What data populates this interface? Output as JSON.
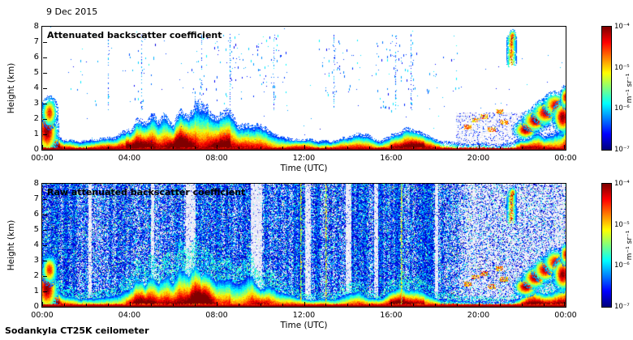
{
  "header": {
    "date": "9 Dec 2015"
  },
  "footer": {
    "credit": "Sodankyla CT25K ceilometer"
  },
  "panels": [
    {
      "title": "Attenuated backscatter coefficient"
    },
    {
      "title": "Raw attenuated backscatter coefficient"
    }
  ],
  "axes": {
    "x": {
      "label": "Time (UTC)",
      "tick_labels": [
        "00:00",
        "04:00",
        "08:00",
        "12:00",
        "16:00",
        "20:00",
        "00:00"
      ],
      "range_hours": [
        0,
        24
      ],
      "minor_tick_every_hours": 1
    },
    "y": {
      "label": "Height (km)",
      "tick_labels": [
        "0",
        "1",
        "2",
        "3",
        "4",
        "5",
        "6",
        "7",
        "8"
      ],
      "range_km": [
        0,
        8
      ]
    }
  },
  "colorbar": {
    "unit": "m⁻¹ sr⁻¹",
    "tick_labels": [
      "10⁻⁴",
      "10⁻⁵",
      "10⁻⁶",
      "10⁻⁷"
    ],
    "colormap": "jet"
  },
  "chart_data": [
    {
      "type": "heatmap",
      "panel": "attenuated",
      "title": "Attenuated backscatter coefficient",
      "xlabel": "Time (UTC)",
      "ylabel": "Height (km)",
      "x_range_hours": [
        0,
        24
      ],
      "y_range_km": [
        0,
        8
      ],
      "x_ticks": [
        "00:00",
        "04:00",
        "08:00",
        "12:00",
        "16:00",
        "20:00",
        "00:00"
      ],
      "y_ticks": [
        0,
        1,
        2,
        3,
        4,
        5,
        6,
        7,
        8
      ],
      "z_unit": "m⁻¹ sr⁻¹",
      "z_scale": "log10",
      "z_range": [
        1e-07,
        0.0001
      ],
      "z_tick_exponents": [
        -4,
        -5,
        -6,
        -7
      ],
      "colormap": "jet",
      "boundary_layer_top_km": [
        [
          0,
          1.2
        ],
        [
          0.5,
          1.0
        ],
        [
          1,
          0.55
        ],
        [
          1.5,
          0.5
        ],
        [
          2,
          0.55
        ],
        [
          2.5,
          0.5
        ],
        [
          3,
          0.6
        ],
        [
          3.5,
          0.7
        ],
        [
          4,
          1.1
        ],
        [
          4.3,
          1.6
        ],
        [
          4.7,
          1.2
        ],
        [
          5,
          1.8
        ],
        [
          5.3,
          1.4
        ],
        [
          5.7,
          2.0
        ],
        [
          6,
          1.6
        ],
        [
          6.3,
          2.1
        ],
        [
          6.7,
          1.8
        ],
        [
          7,
          2.5
        ],
        [
          7.3,
          2.0
        ],
        [
          7.6,
          2.3
        ],
        [
          8,
          1.6
        ],
        [
          8.5,
          1.9
        ],
        [
          9,
          1.4
        ],
        [
          9.5,
          1.6
        ],
        [
          10,
          1.2
        ],
        [
          10.5,
          1.0
        ],
        [
          11,
          0.8
        ],
        [
          11.5,
          0.6
        ],
        [
          12,
          0.5
        ],
        [
          12.5,
          0.45
        ],
        [
          13,
          0.55
        ],
        [
          13.5,
          0.45
        ],
        [
          14,
          0.7
        ],
        [
          14.5,
          0.9
        ],
        [
          15,
          0.6
        ],
        [
          15.5,
          0.5
        ],
        [
          16,
          0.8
        ],
        [
          16.5,
          1.1
        ],
        [
          17,
          1.0
        ],
        [
          17.5,
          0.8
        ],
        [
          18,
          0.5
        ],
        [
          18.5,
          0.4
        ],
        [
          19,
          0.35
        ],
        [
          20,
          0.3
        ],
        [
          21,
          0.3
        ],
        [
          21.5,
          0.35
        ],
        [
          22,
          0.6
        ],
        [
          22.5,
          0.9
        ],
        [
          23,
          0.7
        ],
        [
          23.5,
          1.0
        ],
        [
          24,
          1.3
        ]
      ],
      "features": {
        "strong_intervals": [
          [
            0,
            0.8
          ],
          [
            3.8,
            8.6
          ],
          [
            15.9,
            17.5
          ],
          [
            21.9,
            24
          ]
        ],
        "weak_intervals": [
          [
            18.2,
            21.7
          ]
        ],
        "blobs": [
          [
            0.2,
            1.2,
            0.28,
            0.9,
            1.0
          ],
          [
            0.32,
            2.4,
            0.2,
            0.55,
            0.85
          ],
          [
            22.15,
            1.3,
            0.3,
            0.35,
            1.0
          ],
          [
            22.6,
            1.9,
            0.33,
            0.4,
            1.0
          ],
          [
            23.05,
            2.4,
            0.33,
            0.45,
            0.95
          ],
          [
            23.5,
            2.9,
            0.3,
            0.45,
            0.9
          ],
          [
            23.85,
            2.1,
            0.25,
            0.6,
            1.0
          ],
          [
            23.95,
            3.4,
            0.12,
            0.4,
            0.85
          ],
          [
            21.55,
            7.25,
            0.1,
            0.3,
            1.0
          ]
        ],
        "high_cloud": {
          "center_hour": 21.5,
          "half_width_hours": 0.25,
          "y0_km": 5.3,
          "y1_km": 7.6
        },
        "elevated_streaks": [
          [
            19.5,
            1.5
          ],
          [
            19.85,
            1.95
          ],
          [
            20.25,
            2.2
          ],
          [
            20.6,
            1.35
          ],
          [
            20.95,
            2.5
          ],
          [
            21.15,
            1.8
          ]
        ],
        "attenuated_haze": {
          "t0": 19.0,
          "t1": 24.0,
          "top_km": 2.4,
          "fill_ratio": 0.3
        },
        "speckle_clusters": [
          [
            1.2,
            2.6,
            2.5,
            6.0,
            0.004
          ],
          [
            3.8,
            5.2,
            3.0,
            7.0,
            0.007
          ],
          [
            6.8,
            7.7,
            2.5,
            7.5,
            0.009
          ],
          [
            7.9,
            9.2,
            3.0,
            7.5,
            0.012
          ],
          [
            9.4,
            11.2,
            3.5,
            7.5,
            0.014
          ],
          [
            12.6,
            14.6,
            3.5,
            7.5,
            0.01
          ],
          [
            15.3,
            17.2,
            2.5,
            7.5,
            0.013
          ],
          [
            17.6,
            19.2,
            3.5,
            7.0,
            0.006
          ]
        ],
        "speckle_columns_hours": [
          3.0,
          4.55,
          7.3,
          8.6,
          10.6,
          13.35,
          16.2,
          16.9
        ],
        "base_speckle_density": 0.0012
      }
    },
    {
      "type": "heatmap",
      "panel": "raw",
      "title": "Raw attenuated backscatter coefficient",
      "xlabel": "Time (UTC)",
      "ylabel": "Height (km)",
      "x_range_hours": [
        0,
        24
      ],
      "y_range_km": [
        0,
        8
      ],
      "x_ticks": [
        "00:00",
        "04:00",
        "08:00",
        "12:00",
        "16:00",
        "20:00",
        "00:00"
      ],
      "y_ticks": [
        0,
        1,
        2,
        3,
        4,
        5,
        6,
        7,
        8
      ],
      "z_unit": "m⁻¹ sr⁻¹",
      "z_scale": "log10",
      "z_range": [
        1e-07,
        0.0001
      ],
      "z_tick_exponents": [
        -4,
        -5,
        -6,
        -7
      ],
      "colormap": "jet",
      "shares_layers_with_panel": 0,
      "noise": {
        "background_density": 0.78,
        "pale_band_density": 0.07,
        "low_density_after_hour": 19.4,
        "low_density": 0.3,
        "pale_bands_hours": [
          [
            2.1,
            2.25
          ],
          [
            4.95,
            5.1
          ],
          [
            6.55,
            7.0
          ],
          [
            9.55,
            10.05
          ],
          [
            12.05,
            12.3
          ],
          [
            13.9,
            14.15
          ],
          [
            15.2,
            15.4
          ],
          [
            18.0,
            18.15
          ]
        ]
      },
      "green_lines_hours": [
        11.85,
        13.0,
        16.45
      ]
    }
  ]
}
